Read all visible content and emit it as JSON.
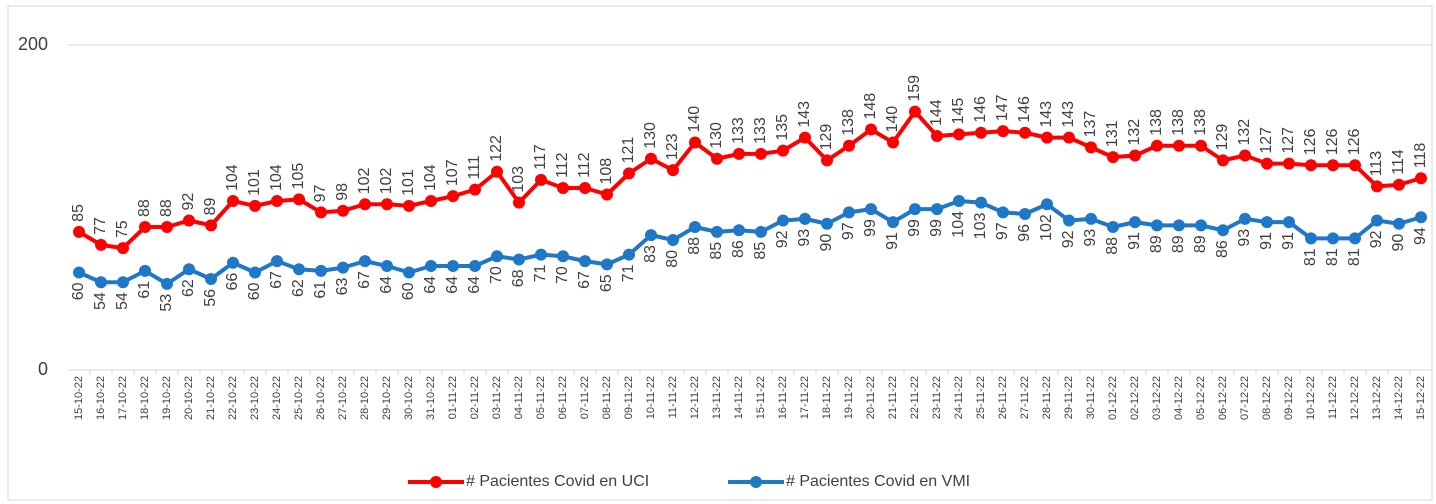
{
  "chart_data": {
    "type": "line",
    "x": [
      "15-10-22",
      "16-10-22",
      "17-10-22",
      "18-10-22",
      "19-10-22",
      "20-10-22",
      "21-10-22",
      "22-10-22",
      "23-10-22",
      "24-10-22",
      "25-10-22",
      "26-10-22",
      "27-10-22",
      "28-10-22",
      "29-10-22",
      "30-10-22",
      "31-10-22",
      "01-11-22",
      "02-11-22",
      "03-11-22",
      "04-11-22",
      "05-11-22",
      "06-11-22",
      "07-11-22",
      "08-11-22",
      "09-11-22",
      "10-11-22",
      "11-11-22",
      "12-11-22",
      "13-11-22",
      "14-11-22",
      "15-11-22",
      "16-11-22",
      "17-11-22",
      "18-11-22",
      "19-11-22",
      "20-11-22",
      "21-11-22",
      "22-11-22",
      "23-11-22",
      "24-11-22",
      "25-11-22",
      "26-11-22",
      "27-11-22",
      "28-11-22",
      "29-11-22",
      "30-11-22",
      "01-12-22",
      "02-12-22",
      "03-12-22",
      "04-12-22",
      "05-12-22",
      "06-12-22",
      "07-12-22",
      "08-12-22",
      "09-12-22",
      "10-12-22",
      "11-12-22",
      "12-12-22",
      "13-12-22",
      "14-12-22",
      "15-12-22"
    ],
    "series": [
      {
        "name": "# Pacientes Covid en UCI",
        "color": "#ff0000",
        "label_position": "above",
        "values": [
          85,
          77,
          75,
          88,
          88,
          92,
          89,
          104,
          101,
          104,
          105,
          97,
          98,
          102,
          102,
          101,
          104,
          107,
          111,
          122,
          103,
          117,
          112,
          112,
          108,
          121,
          130,
          123,
          140,
          130,
          133,
          133,
          135,
          143,
          129,
          138,
          148,
          140,
          159,
          144,
          145,
          146,
          147,
          146,
          143,
          143,
          137,
          131,
          132,
          138,
          138,
          138,
          129,
          132,
          127,
          127,
          126,
          126,
          126,
          113,
          114,
          118
        ]
      },
      {
        "name": "# Pacientes Covid en VMI",
        "color": "#1f77c8",
        "label_position": "below",
        "values": [
          60,
          54,
          54,
          61,
          53,
          62,
          56,
          66,
          60,
          67,
          62,
          61,
          63,
          67,
          64,
          60,
          64,
          64,
          64,
          70,
          68,
          71,
          70,
          67,
          65,
          71,
          83,
          80,
          88,
          85,
          86,
          85,
          92,
          93,
          90,
          97,
          99,
          91,
          99,
          99,
          104,
          103,
          97,
          96,
          102,
          92,
          93,
          88,
          91,
          89,
          89,
          89,
          86,
          93,
          91,
          91,
          81,
          81,
          81,
          92,
          90,
          94
        ]
      }
    ],
    "ylim": [
      0,
      200
    ],
    "yticks": [
      0,
      200
    ],
    "grid": true,
    "legend": "bottom"
  }
}
